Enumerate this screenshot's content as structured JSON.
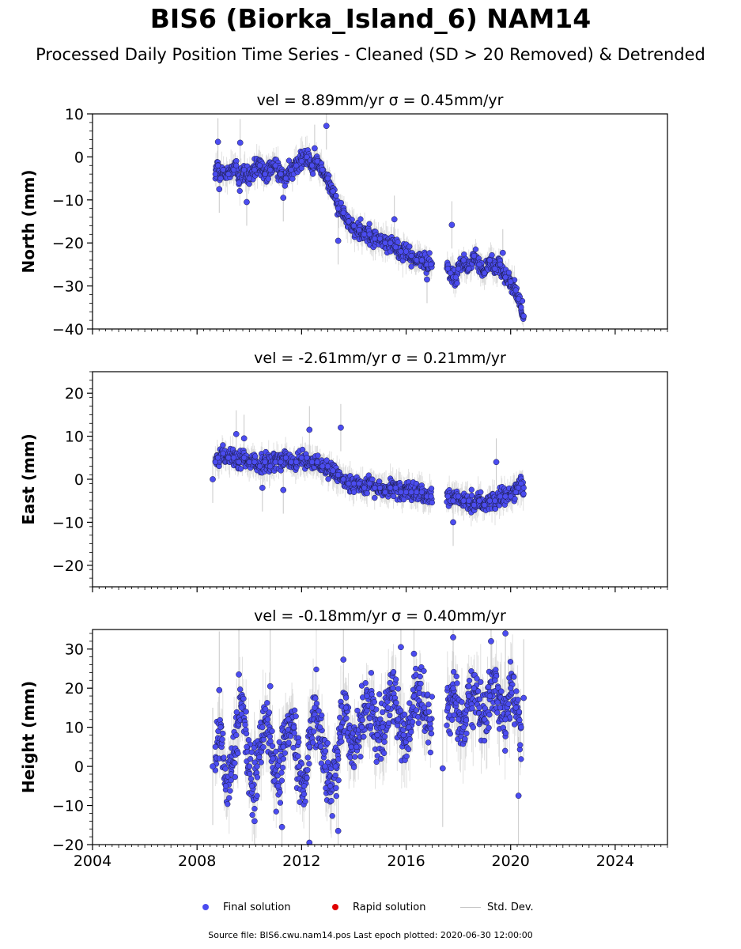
{
  "title": "BIS6 (Biorka_Island_6) NAM14",
  "subtitle": "Processed Daily Position Time Series - Cleaned (SD > 20 Removed) & Detrended",
  "legend": {
    "final": "Final solution",
    "rapid": "Rapid solution",
    "std": "Std. Dev."
  },
  "footer": "Source file: BIS6.cwu.nam14.pos  Last epoch plotted: 2020-06-30 12:00:00",
  "colors": {
    "final": "#4b4cf0",
    "rapid": "#e00000",
    "std_dev": "#c8c8c8"
  },
  "chart_data": [
    {
      "type": "scatter",
      "title": "vel = 8.89mm/yr   σ = 0.45mm/yr",
      "ylabel": "North (mm)",
      "xlim": [
        2004,
        2026
      ],
      "ylim": [
        -40,
        10
      ],
      "yticks": [
        10,
        0,
        -10,
        -20,
        -30,
        -40
      ],
      "ytick_labels": [
        "10",
        "0",
        "−10",
        "−20",
        "−30",
        "−40"
      ],
      "grid": false,
      "series": [
        {
          "name": "Final solution",
          "x": [
            2008.7,
            2008.8,
            2008.9,
            2009.0,
            2009.2,
            2009.4,
            2009.5,
            2009.6,
            2009.8,
            2010.0,
            2010.2,
            2010.4,
            2010.6,
            2010.8,
            2011.0,
            2011.2,
            2011.4,
            2011.6,
            2011.8,
            2012.0,
            2012.2,
            2012.4,
            2012.6,
            2012.8,
            2013.0,
            2013.2,
            2013.4,
            2013.6,
            2013.8,
            2014.0,
            2014.2,
            2014.4,
            2014.6,
            2014.8,
            2015.0,
            2015.2,
            2015.4,
            2015.6,
            2015.8,
            2016.0,
            2016.2,
            2016.4,
            2016.6,
            2016.8,
            2016.95,
            2017.6,
            2017.7,
            2017.8,
            2017.9,
            2018.0,
            2018.2,
            2018.4,
            2018.6,
            2018.8,
            2019.0,
            2019.2,
            2019.4,
            2019.6,
            2019.8,
            2020.0,
            2020.2,
            2020.3,
            2020.4,
            2020.5
          ],
          "y": [
            -4,
            -2,
            -5,
            -3,
            -4,
            -3,
            -2,
            -6,
            -3,
            -5,
            -3,
            -2,
            -4,
            -3,
            -2,
            -4,
            -5,
            -3,
            -2,
            -1,
            0,
            -2,
            -1,
            -3,
            -5,
            -8,
            -12,
            -13,
            -15,
            -16,
            -17,
            -18,
            -18,
            -19,
            -19,
            -20,
            -20,
            -21,
            -22,
            -22,
            -23,
            -24,
            -24,
            -25,
            -25,
            -26,
            -27,
            -28,
            -28,
            -26,
            -24,
            -26,
            -23,
            -25,
            -27,
            -24,
            -26,
            -25,
            -28,
            -29,
            -31,
            -33,
            -35,
            -37
          ],
          "outliers": {
            "x": [
              2008.8,
              2009.65,
              2009.9,
              2011.3,
              2012.5,
              2012.95,
              2013.4,
              2015.55,
              2016.8,
              2017.75,
              2019.7,
              2008.85
            ],
            "y": [
              3.5,
              3.3,
              -10.5,
              -9.5,
              2.0,
              7.2,
              -19.5,
              -14.5,
              -28.5,
              -15.8,
              -22.3,
              -7.5
            ]
          }
        },
        {
          "name": "Rapid solution",
          "x": [],
          "y": []
        }
      ]
    },
    {
      "type": "scatter",
      "title": "vel = -2.61mm/yr   σ = 0.21mm/yr",
      "ylabel": "East (mm)",
      "xlim": [
        2004,
        2026
      ],
      "ylim": [
        -25,
        25
      ],
      "yticks": [
        20,
        10,
        0,
        -10,
        -20
      ],
      "ytick_labels": [
        "20",
        "10",
        "0",
        "−10",
        "−20"
      ],
      "grid": false,
      "series": [
        {
          "name": "Final solution",
          "x": [
            2008.7,
            2008.8,
            2009.0,
            2009.2,
            2009.4,
            2009.6,
            2009.8,
            2010.0,
            2010.2,
            2010.4,
            2010.6,
            2010.8,
            2011.0,
            2011.2,
            2011.4,
            2011.6,
            2011.8,
            2012.0,
            2012.2,
            2012.4,
            2012.6,
            2012.8,
            2013.0,
            2013.2,
            2013.4,
            2013.6,
            2013.8,
            2014.0,
            2014.2,
            2014.4,
            2014.6,
            2014.8,
            2015.0,
            2015.2,
            2015.4,
            2015.6,
            2015.8,
            2016.0,
            2016.2,
            2016.4,
            2016.6,
            2016.8,
            2016.95,
            2017.6,
            2017.7,
            2017.8,
            2017.9,
            2018.0,
            2018.2,
            2018.4,
            2018.6,
            2018.8,
            2019.0,
            2019.2,
            2019.4,
            2019.6,
            2019.8,
            2020.0,
            2020.2,
            2020.3,
            2020.4,
            2020.5
          ],
          "y": [
            4,
            5,
            6,
            5,
            5,
            4,
            5,
            4,
            4,
            3,
            4,
            3,
            4,
            4,
            5,
            4,
            4,
            5,
            5,
            4,
            4,
            3,
            3,
            2,
            1,
            0,
            -1,
            -1,
            -1,
            -2,
            -1,
            -2,
            -2,
            -3,
            -2,
            -2,
            -3,
            -3,
            -3,
            -3,
            -3,
            -4,
            -4,
            -4,
            -5,
            -5,
            -4,
            -4,
            -5,
            -5,
            -6,
            -5,
            -6,
            -5,
            -5,
            -4,
            -4,
            -4,
            -3,
            -2,
            -1,
            -2
          ],
          "outliers": {
            "x": [
              2008.6,
              2009.5,
              2009.8,
              2010.5,
              2011.3,
              2012.3,
              2013.5,
              2017.8,
              2019.45
            ],
            "y": [
              0,
              10.5,
              9.5,
              -2,
              -2.5,
              11.5,
              12,
              -10,
              4
            ]
          }
        },
        {
          "name": "Rapid solution",
          "x": [],
          "y": []
        }
      ]
    },
    {
      "type": "scatter",
      "title": "vel = -0.18mm/yr   σ = 0.40mm/yr",
      "ylabel": "Height (mm)",
      "xlim": [
        2004,
        2026
      ],
      "ylim": [
        -20,
        35
      ],
      "yticks": [
        30,
        20,
        10,
        0,
        -10,
        -20
      ],
      "ytick_labels": [
        "30",
        "20",
        "10",
        "0",
        "−10",
        "−20"
      ],
      "xticks": [
        2004,
        2008,
        2012,
        2016,
        2020,
        2024
      ],
      "xtick_labels": [
        "2004",
        "2008",
        "2012",
        "2016",
        "2020",
        "2024"
      ],
      "grid": false,
      "series": [
        {
          "name": "Final solution",
          "x": [
            2008.7,
            2008.9,
            2009.1,
            2009.3,
            2009.5,
            2009.7,
            2009.9,
            2010.1,
            2010.3,
            2010.5,
            2010.7,
            2010.9,
            2011.1,
            2011.3,
            2011.5,
            2011.7,
            2011.9,
            2012.1,
            2012.3,
            2012.5,
            2012.7,
            2012.9,
            2013.1,
            2013.3,
            2013.5,
            2013.7,
            2013.9,
            2014.1,
            2014.3,
            2014.5,
            2014.7,
            2014.9,
            2015.1,
            2015.3,
            2015.5,
            2015.7,
            2015.9,
            2016.1,
            2016.3,
            2016.5,
            2016.7,
            2016.9,
            2017.6,
            2017.8,
            2018.0,
            2018.2,
            2018.4,
            2018.6,
            2018.8,
            2019.0,
            2019.2,
            2019.4,
            2019.6,
            2019.8,
            2020.0,
            2020.2,
            2020.4
          ],
          "y": [
            5,
            10,
            -5,
            -2,
            8,
            15,
            5,
            -5,
            0,
            10,
            12,
            2,
            -5,
            5,
            12,
            10,
            0,
            -5,
            5,
            15,
            10,
            0,
            -5,
            0,
            10,
            15,
            5,
            5,
            10,
            18,
            15,
            8,
            10,
            15,
            20,
            12,
            8,
            10,
            18,
            20,
            15,
            12,
            15,
            20,
            12,
            10,
            18,
            20,
            15,
            12,
            18,
            22,
            15,
            12,
            20,
            15,
            10
          ],
          "outliers": {
            "x": [
              2008.6,
              2008.85,
              2009.6,
              2010.2,
              2010.8,
              2011.25,
              2012.3,
              2013.4,
              2013.6,
              2015.8,
              2016.3,
              2017.4,
              2017.8,
              2019.25,
              2019.8,
              2020.3,
              2020.5
            ],
            "y": [
              0,
              19.5,
              23.5,
              -14,
              20.5,
              -15.5,
              -19.5,
              -16.5,
              27.3,
              30.5,
              28.8,
              -0.5,
              33,
              32,
              34,
              -7.5,
              17.5
            ]
          }
        },
        {
          "name": "Rapid solution",
          "x": [],
          "y": []
        }
      ]
    }
  ]
}
